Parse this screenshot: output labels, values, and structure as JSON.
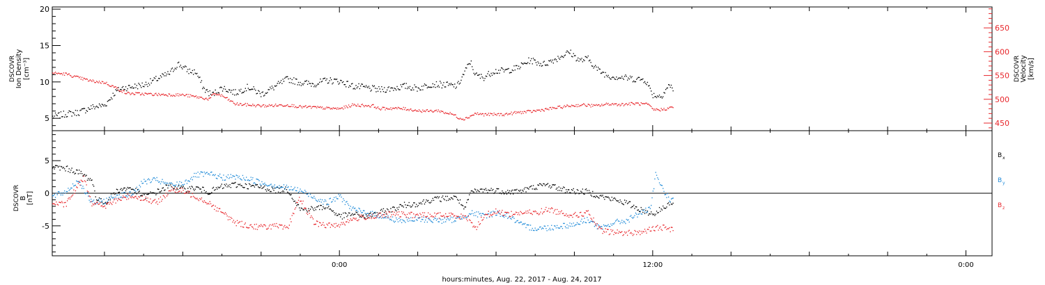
{
  "colors": {
    "black": "#000000",
    "red": "#e8262b",
    "blue": "#1e8ad8"
  },
  "xaxis": {
    "title": "hours:minutes, Aug. 22, 2017 - Aug. 24, 2017",
    "tick_labels": [
      "0:00",
      "12:00",
      "0:00"
    ],
    "tick_hours": [
      0,
      12,
      24
    ],
    "range_hours": [
      -11,
      25
    ]
  },
  "chart_data": [
    {
      "type": "scatter",
      "panel": "ion-density-velocity",
      "left_axis": {
        "label_lines": [
          "DSCOVR",
          "Ion Density",
          "[cm⁻³]"
        ],
        "ticks": [
          "5",
          "10",
          "15",
          "20"
        ],
        "ylim": [
          3.3,
          20.3
        ]
      },
      "right_axis": {
        "label_lines": [
          "DSCOVR",
          "Velocity",
          "[km/s]"
        ],
        "ticks": [
          "450",
          "500",
          "550",
          "600",
          "650"
        ],
        "ylim": [
          434,
          694
        ],
        "color": "#e8262b"
      },
      "series": [
        {
          "key": "density",
          "axis": "left",
          "color": "#000000",
          "x": [
            -11,
            -10.5,
            -10,
            -9.5,
            -9,
            -8.6,
            -8.3,
            -8,
            -7.5,
            -7,
            -6.5,
            -6.2,
            -5.8,
            -5.5,
            -5.2,
            -4.9,
            -4.5,
            -4,
            -3.5,
            -3,
            -2.5,
            -2,
            -1.5,
            -1,
            -0.5,
            0,
            0.5,
            1,
            1.5,
            2,
            2.5,
            3,
            3.5,
            4,
            4.5,
            5,
            5.2,
            5.5,
            5.9,
            6.3,
            6.8,
            7.3,
            7.8,
            8.3,
            8.8,
            9.2,
            9.5,
            9.9,
            10.3,
            10.8,
            11.3,
            11.7,
            12,
            12.3,
            12.6,
            12.8
          ],
          "y": [
            5.2,
            5.6,
            5.8,
            6.5,
            6.8,
            8.6,
            9.2,
            9.3,
            9.6,
            10.4,
            11.2,
            12.5,
            11.5,
            11.3,
            9.0,
            8.2,
            9.2,
            8.5,
            9.3,
            8.3,
            9.3,
            10.4,
            9.9,
            9.7,
            10.2,
            10.1,
            9.4,
            9.2,
            8.9,
            9.1,
            9.4,
            9.1,
            9.7,
            9.6,
            9.4,
            12.8,
            10.9,
            10.6,
            11.5,
            11.5,
            11.9,
            13.0,
            12.4,
            13.2,
            14.1,
            12.9,
            13.2,
            11.6,
            10.8,
            10.6,
            10.4,
            10.3,
            8.2,
            8.0,
            9.5,
            9.0
          ]
        },
        {
          "key": "velocity",
          "axis": "right",
          "color": "#e8262b",
          "x": [
            -11,
            -10.5,
            -10,
            -9.5,
            -9,
            -8.5,
            -8.2,
            -8,
            -7,
            -6,
            -5.5,
            -5,
            -4.8,
            -4.5,
            -4,
            -3.5,
            -3,
            -2,
            -1.5,
            -1,
            -0.5,
            0,
            0.5,
            1.3,
            1.5,
            2,
            2.5,
            3,
            3.5,
            3.8,
            4,
            4.3,
            4.6,
            4.8,
            5.2,
            5.5,
            5.8,
            6.3,
            6.8,
            7.3,
            7.8,
            8.3,
            8.8,
            9.3,
            9.8,
            10.3,
            10.8,
            11.3,
            11.8,
            12,
            12.3,
            12.6,
            12.8
          ],
          "y": [
            555,
            553,
            545,
            538,
            535,
            522,
            513,
            512,
            510,
            509,
            505,
            500,
            512,
            507,
            490,
            488,
            486,
            488,
            484,
            483,
            481,
            480,
            488,
            486,
            480,
            481,
            480,
            476,
            475,
            476,
            472,
            469,
            460,
            459,
            470,
            468,
            468,
            468,
            472,
            474,
            478,
            482,
            486,
            488,
            486,
            490,
            489,
            491,
            489,
            478,
            478,
            481,
            484
          ]
        }
      ]
    },
    {
      "type": "scatter",
      "panel": "magnetic-field",
      "left_axis": {
        "label_lines": [
          "DSCOVR",
          "B",
          "[nT]"
        ],
        "ticks": [
          "-5",
          "0",
          "5"
        ],
        "ylim": [
          -9.6,
          9.6
        ]
      },
      "right_legend": [
        {
          "label": "B",
          "sub": "x",
          "color": "#000000"
        },
        {
          "label": "B",
          "sub": "y",
          "color": "#1e8ad8"
        },
        {
          "label": "B",
          "sub": "z",
          "color": "#e8262b"
        }
      ],
      "series": [
        {
          "key": "bx",
          "color": "#000000",
          "x": [
            -11,
            -10.5,
            -10,
            -9.5,
            -9.3,
            -9,
            -8.5,
            -8,
            -7.5,
            -7,
            -6.5,
            -6,
            -5.5,
            -5,
            -4.5,
            -4,
            -3.5,
            -3,
            -2.5,
            -2,
            -1.5,
            -1,
            -0.5,
            0,
            0.5,
            1,
            1.5,
            2,
            2.5,
            3,
            3.5,
            4,
            4.5,
            4.8,
            5,
            5.5,
            6,
            6.5,
            7,
            7.5,
            8,
            8.5,
            9,
            9.5,
            10,
            10.5,
            11,
            11.5,
            12,
            12.3,
            12.6,
            12.8
          ],
          "y": [
            4.0,
            3.8,
            3.2,
            2.0,
            -1.0,
            -1.5,
            0.5,
            0.8,
            -0.5,
            0.2,
            1.2,
            0.6,
            0.8,
            0.2,
            1.0,
            1.3,
            1.1,
            0.9,
            0.5,
            0.6,
            -2.5,
            -2.4,
            -2.0,
            -3.6,
            -3.2,
            -3.6,
            -3.0,
            -2.5,
            -1.8,
            -1.6,
            -1.0,
            -0.8,
            -0.7,
            -2.6,
            0.1,
            0.5,
            0.4,
            0.2,
            0.4,
            1.0,
            1.3,
            0.6,
            0.3,
            0.2,
            -0.5,
            -1.0,
            -1.5,
            -2.5,
            -3.2,
            -2.5,
            -1.5,
            -1.8
          ]
        },
        {
          "key": "by",
          "color": "#1e8ad8",
          "x": [
            -11,
            -10.5,
            -10,
            -9.5,
            -9,
            -8.5,
            -8,
            -7.5,
            -7,
            -6.5,
            -6,
            -5.5,
            -5,
            -4.5,
            -4,
            -3.5,
            -3,
            -2.5,
            -2,
            -1.5,
            -1,
            -0.5,
            0,
            0.5,
            1,
            1.5,
            2,
            2.5,
            3,
            3.5,
            4,
            4.5,
            5,
            5.5,
            6,
            6.5,
            7,
            7.5,
            8,
            8.5,
            9,
            9.5,
            10,
            10.5,
            11,
            11.5,
            11.9,
            12.1,
            12.4,
            12.6,
            12.8
          ],
          "y": [
            -0.5,
            0.2,
            2.0,
            -1.5,
            -1.2,
            -0.3,
            -0.2,
            1.8,
            2.0,
            1.2,
            1.5,
            2.8,
            2.9,
            2.4,
            2.5,
            2.2,
            1.6,
            1.2,
            0.8,
            0.4,
            -0.6,
            -1.5,
            -0.5,
            -2.5,
            -3.0,
            -3.4,
            -4.0,
            -4.2,
            -4.0,
            -4.1,
            -4.2,
            -4.0,
            -3.0,
            -3.5,
            -3.0,
            -3.6,
            -5.0,
            -5.4,
            -5.3,
            -5.0,
            -4.8,
            -4.0,
            -5.5,
            -4.5,
            -4.2,
            -3.0,
            -2.5,
            2.8,
            0.5,
            -0.8,
            -1.2
          ]
        },
        {
          "key": "bz",
          "color": "#e8262b",
          "x": [
            -11,
            -10.5,
            -10,
            -9.8,
            -9.5,
            -9,
            -8.5,
            -8,
            -7.5,
            -7,
            -6.5,
            -6,
            -5.5,
            -5,
            -4.5,
            -4,
            -3.5,
            -3,
            -2.5,
            -2,
            -1.6,
            -1.5,
            -1,
            -0.5,
            0,
            0.5,
            1,
            1.5,
            2,
            2.5,
            3,
            3.5,
            4,
            4.5,
            5,
            5.2,
            5.5,
            6,
            6.5,
            7,
            7.5,
            8,
            8.5,
            9,
            9.5,
            10,
            10.5,
            11,
            11.5,
            12,
            12.3,
            12.6,
            12.8
          ],
          "y": [
            -1.5,
            -1.8,
            1.3,
            2.5,
            -1.5,
            -2.0,
            -1.0,
            -0.4,
            -0.8,
            -1.5,
            0.5,
            0.3,
            -0.5,
            -1.5,
            -3.0,
            -4.5,
            -5.0,
            -5.2,
            -5.0,
            -5.5,
            -1.0,
            -1.0,
            -4.5,
            -5.0,
            -4.8,
            -4.0,
            -3.6,
            -3.5,
            -3.2,
            -3.3,
            -3.4,
            -3.4,
            -3.4,
            -3.4,
            -4.0,
            -5.5,
            -3.5,
            -2.8,
            -3.2,
            -3.0,
            -3.0,
            -2.5,
            -3.0,
            -3.4,
            -3.0,
            -5.8,
            -6.0,
            -6.1,
            -6.0,
            -5.5,
            -5.2,
            -5.5,
            -5.5
          ]
        }
      ]
    }
  ]
}
